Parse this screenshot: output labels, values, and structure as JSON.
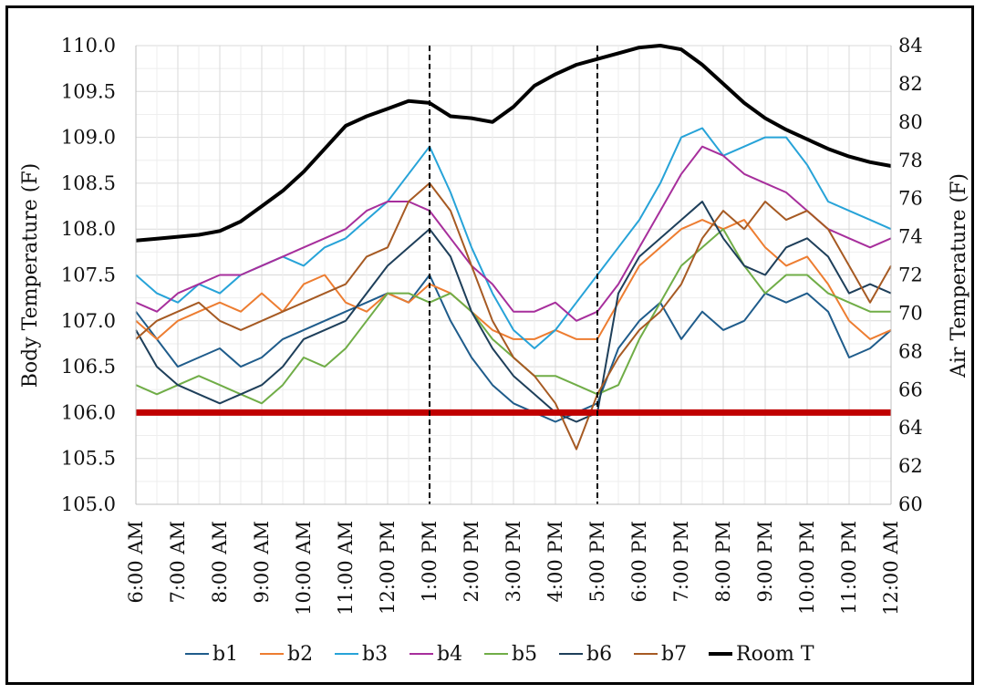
{
  "chart_data": {
    "type": "line",
    "ylabel": "Body Temperature (F)",
    "y2label": "Air Temperature (F)",
    "ylim": [
      105.0,
      110.0
    ],
    "y2lim": [
      60,
      84
    ],
    "yticks": [
      "105.0",
      "105.5",
      "106.0",
      "106.5",
      "107.0",
      "107.5",
      "108.0",
      "108.5",
      "109.0",
      "109.5",
      "110.0"
    ],
    "y2ticks": [
      "60",
      "62",
      "64",
      "66",
      "68",
      "70",
      "72",
      "74",
      "76",
      "78",
      "80",
      "82",
      "84"
    ],
    "xlim": [
      6,
      24
    ],
    "xticks": [
      "6:00 AM",
      "7:00 AM",
      "8:00 AM",
      "9:00 AM",
      "10:00 AM",
      "11:00 AM",
      "12:00 PM",
      "1:00 PM",
      "2:00 PM",
      "3:00 PM",
      "4:00 PM",
      "5:00 PM",
      "6:00 PM",
      "7:00 PM",
      "8:00 PM",
      "9:00 PM",
      "10:00 PM",
      "11:00 PM",
      "12:00 AM"
    ],
    "vlines": [
      13,
      17
    ],
    "threshold": {
      "value": 106.0,
      "color": "#c00000"
    },
    "grid": true,
    "legend": "bottom",
    "x": [
      6,
      6.5,
      7,
      7.5,
      8,
      8.5,
      9,
      9.5,
      10,
      10.5,
      11,
      11.5,
      12,
      12.5,
      13,
      13.5,
      14,
      14.5,
      15,
      15.5,
      16,
      16.5,
      17,
      17.5,
      18,
      18.5,
      19,
      19.5,
      20,
      20.5,
      21,
      21.5,
      22,
      22.5,
      23,
      23.5,
      24
    ],
    "series": [
      {
        "name": "b1",
        "color": "#1f5c8b",
        "axis": "left",
        "values": [
          107.1,
          106.8,
          106.5,
          106.6,
          106.7,
          106.5,
          106.6,
          106.8,
          106.9,
          107.0,
          107.1,
          107.2,
          107.3,
          107.2,
          107.5,
          107.0,
          106.6,
          106.3,
          106.1,
          106.0,
          105.9,
          106.0,
          106.1,
          106.7,
          107.0,
          107.2,
          106.8,
          107.1,
          106.9,
          107.0,
          107.3,
          107.2,
          107.3,
          107.1,
          106.6,
          106.7,
          106.9
        ]
      },
      {
        "name": "b2",
        "color": "#ed7d31",
        "axis": "left",
        "values": [
          107.0,
          106.8,
          107.0,
          107.1,
          107.2,
          107.1,
          107.3,
          107.1,
          107.4,
          107.5,
          107.2,
          107.1,
          107.3,
          107.2,
          107.4,
          107.3,
          107.1,
          106.9,
          106.8,
          106.8,
          106.9,
          106.8,
          106.8,
          107.2,
          107.6,
          107.8,
          108.0,
          108.1,
          108.0,
          108.1,
          107.8,
          107.6,
          107.7,
          107.4,
          107.0,
          106.8,
          106.9
        ]
      },
      {
        "name": "b3",
        "color": "#27a3d8",
        "axis": "left",
        "values": [
          107.5,
          107.3,
          107.2,
          107.4,
          107.3,
          107.5,
          107.6,
          107.7,
          107.6,
          107.8,
          107.9,
          108.1,
          108.3,
          108.6,
          108.9,
          108.4,
          107.8,
          107.3,
          106.9,
          106.7,
          106.9,
          107.2,
          107.5,
          107.8,
          108.1,
          108.5,
          109.0,
          109.1,
          108.8,
          108.9,
          109.0,
          109.0,
          108.7,
          108.3,
          108.2,
          108.1,
          108.0
        ]
      },
      {
        "name": "b4",
        "color": "#a72f9c",
        "axis": "left",
        "values": [
          107.2,
          107.1,
          107.3,
          107.4,
          107.5,
          107.5,
          107.6,
          107.7,
          107.8,
          107.9,
          108.0,
          108.2,
          108.3,
          108.3,
          108.2,
          107.9,
          107.6,
          107.4,
          107.1,
          107.1,
          107.2,
          107.0,
          107.1,
          107.4,
          107.8,
          108.2,
          108.6,
          108.9,
          108.8,
          108.6,
          108.5,
          108.4,
          108.2,
          108.0,
          107.9,
          107.8,
          107.9
        ]
      },
      {
        "name": "b5",
        "color": "#70ad47",
        "axis": "left",
        "values": [
          106.3,
          106.2,
          106.3,
          106.4,
          106.3,
          106.2,
          106.1,
          106.3,
          106.6,
          106.5,
          106.7,
          107.0,
          107.3,
          107.3,
          107.2,
          107.3,
          107.1,
          106.8,
          106.6,
          106.4,
          106.4,
          106.3,
          106.2,
          106.3,
          106.8,
          107.2,
          107.6,
          107.8,
          108.0,
          107.6,
          107.3,
          107.5,
          107.5,
          107.3,
          107.2,
          107.1,
          107.1
        ]
      },
      {
        "name": "b6",
        "color": "#1e3f5a",
        "axis": "left",
        "values": [
          106.9,
          106.5,
          106.3,
          106.2,
          106.1,
          106.2,
          106.3,
          106.5,
          106.8,
          106.9,
          107.0,
          107.3,
          107.6,
          107.8,
          108.0,
          107.7,
          107.1,
          106.7,
          106.4,
          106.2,
          106.0,
          105.9,
          106.0,
          107.3,
          107.7,
          107.9,
          108.1,
          108.3,
          107.9,
          107.6,
          107.5,
          107.8,
          107.9,
          107.7,
          107.3,
          107.4,
          107.3
        ]
      },
      {
        "name": "b7",
        "color": "#a65a23",
        "axis": "left",
        "values": [
          106.8,
          107.0,
          107.1,
          107.2,
          107.0,
          106.9,
          107.0,
          107.1,
          107.2,
          107.3,
          107.4,
          107.7,
          107.8,
          108.3,
          108.5,
          108.2,
          107.6,
          107.0,
          106.6,
          106.4,
          106.1,
          105.6,
          106.2,
          106.6,
          106.9,
          107.1,
          107.4,
          107.9,
          108.2,
          108.0,
          108.3,
          108.1,
          108.2,
          108.0,
          107.6,
          107.2,
          107.6
        ]
      },
      {
        "name": "Room T",
        "color": "#000000",
        "axis": "right",
        "values": [
          73.8,
          73.9,
          74.0,
          74.1,
          74.3,
          74.8,
          75.6,
          76.4,
          77.4,
          78.6,
          79.8,
          80.3,
          80.7,
          81.1,
          81.0,
          80.3,
          80.2,
          80.0,
          80.8,
          81.9,
          82.5,
          83.0,
          83.3,
          83.6,
          83.9,
          84.0,
          83.8,
          83.0,
          82.0,
          81.0,
          80.2,
          79.6,
          79.1,
          78.6,
          78.2,
          77.9,
          77.7
        ]
      }
    ]
  }
}
